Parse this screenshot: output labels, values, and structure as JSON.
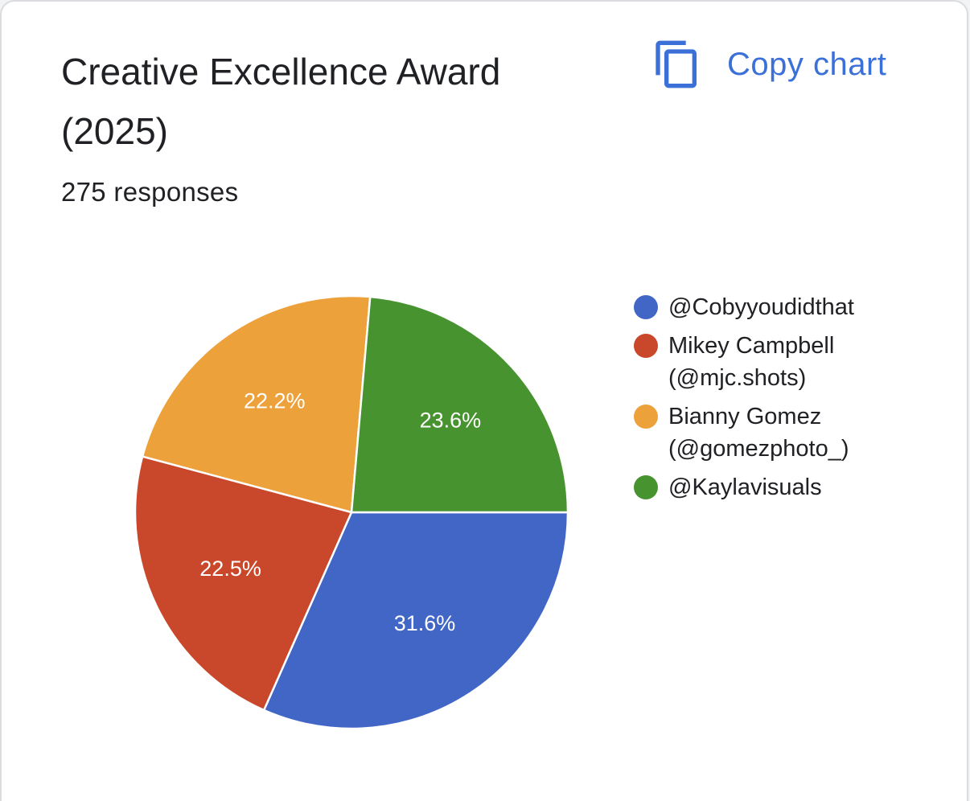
{
  "card": {
    "title": "Creative Excellence Award (2025)",
    "responses": "275 responses",
    "copy_label": "Copy chart",
    "copy_icon": "copy-icon"
  },
  "colors": {
    "accent": "#3a70d8",
    "slices": [
      "#4166c6",
      "#c9472a",
      "#eda13a",
      "#479330"
    ]
  },
  "chart_data": {
    "type": "pie",
    "title": "Creative Excellence Award (2025)",
    "legend_position": "right",
    "series": [
      {
        "name": "@Cobyyoudidthat",
        "value": 31.6,
        "label": "31.6%"
      },
      {
        "name": "Mikey Campbell (@mjc.shots)",
        "value": 22.5,
        "label": "22.5%"
      },
      {
        "name": "Bianny Gomez (@gomezphoto_)",
        "value": 22.2,
        "label": "22.2%"
      },
      {
        "name": "@Kaylavisuals",
        "value": 23.6,
        "label": "23.6%"
      }
    ]
  }
}
